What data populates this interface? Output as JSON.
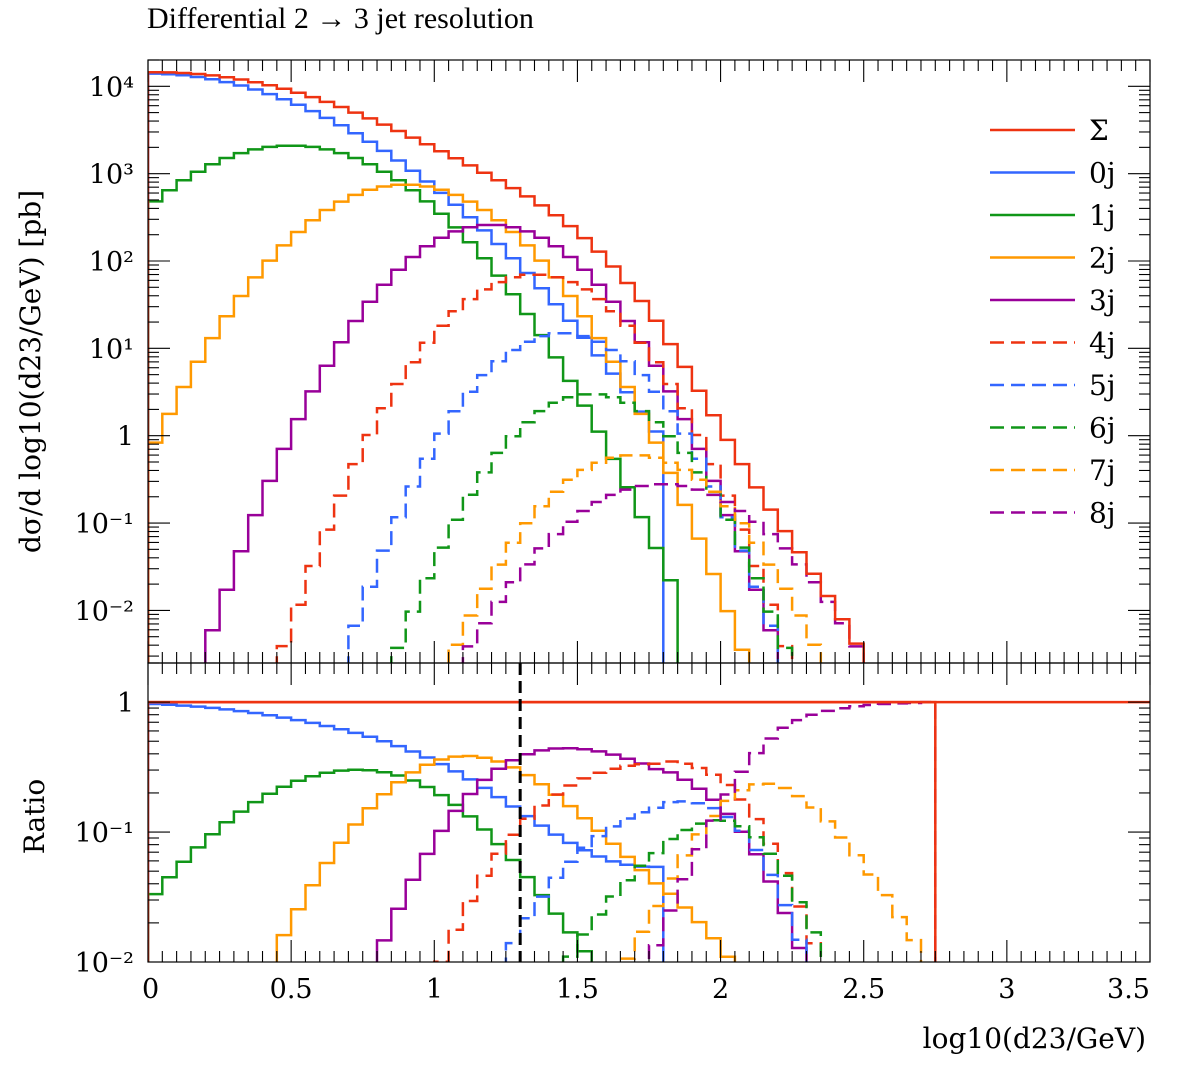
{
  "chart_data": {
    "type": "line",
    "title": "Differential 2 → 3 jet resolution",
    "xlabel": "log10(d23/GeV)",
    "ylabel_top": "dσ/d log10(d23/GeV) [pb]",
    "ylabel_bottom": "Ratio",
    "xlim": [
      0,
      3.5
    ],
    "ylim_top": [
      0.0025,
      20000
    ],
    "ylim_bottom": [
      0.01,
      2.0
    ],
    "x_ticks": [
      "0",
      "0.5",
      "1",
      "1.5",
      "2",
      "2.5",
      "3",
      "3.5"
    ],
    "y_ticks_top": [
      "10⁴",
      "10³",
      "10²",
      "10¹",
      "1",
      "10⁻¹",
      "10⁻²"
    ],
    "y_ticks_bottom": [
      "1",
      "10⁻¹",
      "10⁻²"
    ],
    "bin_width": 0.05,
    "reference_line_x": 1.3,
    "series": [
      {
        "name": "Σ",
        "color": "#ee3311",
        "dashed": false,
        "peak_x": 0.0,
        "peak_y": 14000,
        "width": 1.25,
        "end_x": 2.73
      },
      {
        "name": "0j",
        "color": "#3366ff",
        "dashed": false,
        "peak_x": 0.0,
        "peak_y": 14000,
        "width": 0.62,
        "end_x": 1.78
      },
      {
        "name": "1j",
        "color": "#109618",
        "dashed": false,
        "peak_x": 0.5,
        "peak_y": 2100,
        "width": 0.42,
        "end_x": 1.85
      },
      {
        "name": "2j",
        "color": "#ff9900",
        "dashed": false,
        "peak_x": 0.9,
        "peak_y": 750,
        "width": 0.36,
        "end_x": 2.3
      },
      {
        "name": "3j",
        "color": "#990099",
        "dashed": false,
        "peak_x": 1.2,
        "peak_y": 260,
        "width": 0.32,
        "end_x": 2.6
      },
      {
        "name": "4j",
        "color": "#ee3311",
        "dashed": true,
        "peak_x": 1.35,
        "peak_y": 70,
        "width": 0.3,
        "end_x": 2.7
      },
      {
        "name": "5j",
        "color": "#3366ff",
        "dashed": true,
        "peak_x": 1.45,
        "peak_y": 15,
        "width": 0.28,
        "end_x": 2.7
      },
      {
        "name": "6j",
        "color": "#109618",
        "dashed": true,
        "peak_x": 1.55,
        "peak_y": 3,
        "width": 0.28,
        "end_x": 2.72
      },
      {
        "name": "7j",
        "color": "#ff9900",
        "dashed": true,
        "peak_x": 1.7,
        "peak_y": 0.6,
        "width": 0.3,
        "end_x": 2.73
      },
      {
        "name": "8j",
        "color": "#990099",
        "dashed": true,
        "peak_x": 1.8,
        "peak_y": 0.28,
        "width": 0.35,
        "end_x": 2.75
      }
    ]
  }
}
